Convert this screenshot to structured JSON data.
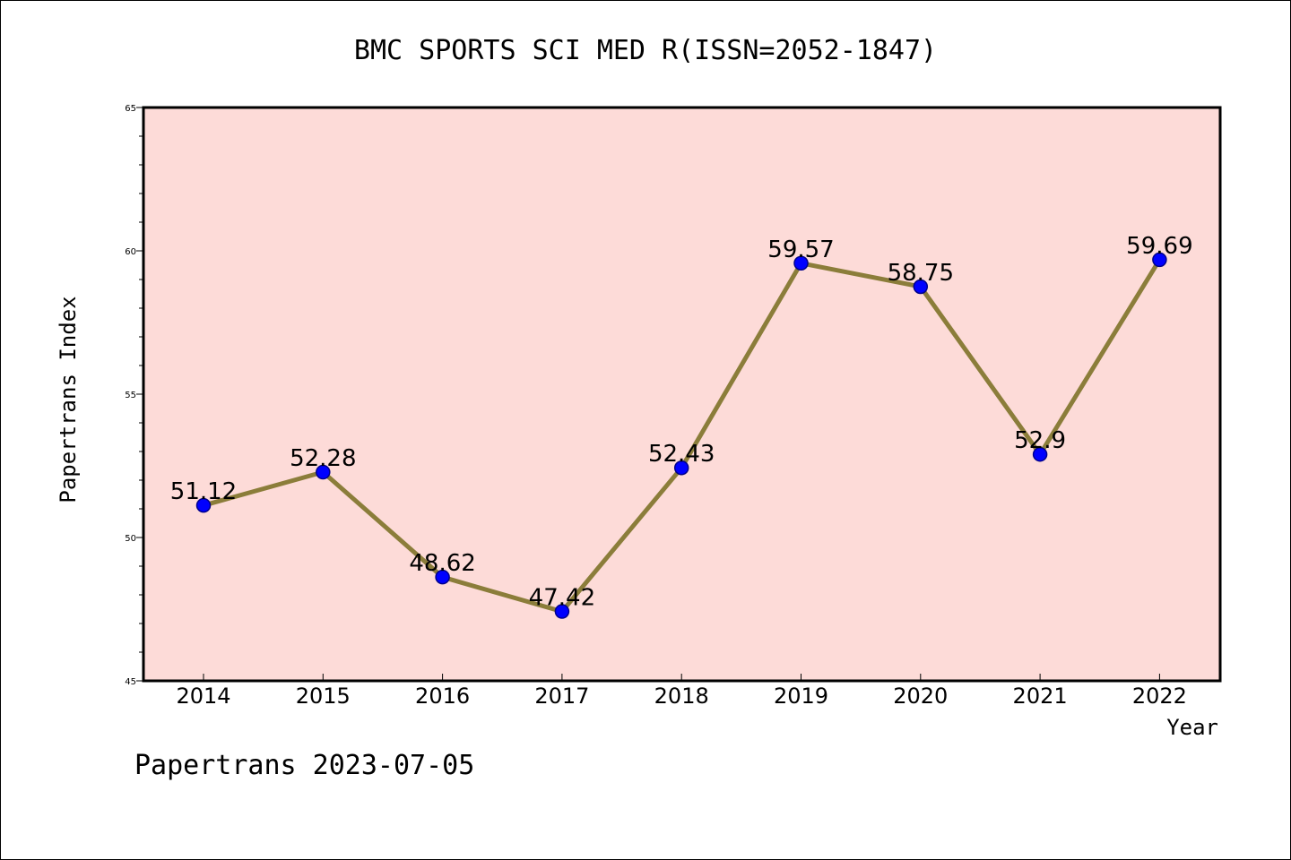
{
  "chart_data": {
    "type": "line",
    "title": "BMC SPORTS SCI MED R(ISSN=2052-1847)",
    "xlabel": "Year",
    "ylabel": "Papertrans Index",
    "categories": [
      "2014",
      "2015",
      "2016",
      "2017",
      "2018",
      "2019",
      "2020",
      "2021",
      "2022"
    ],
    "values": [
      51.12,
      52.28,
      48.62,
      47.42,
      52.43,
      59.57,
      58.75,
      52.9,
      59.69
    ],
    "data_labels": [
      "51.12",
      "52.28",
      "48.62",
      "47.42",
      "52.43",
      "59.57",
      "58.75",
      "52.9",
      "59.69"
    ],
    "ylim": [
      45,
      65
    ],
    "yticks": [
      "45",
      "50",
      "55",
      "60",
      "65"
    ],
    "grid": false,
    "legend": "none",
    "colors": {
      "plot_background": "#fddbd8",
      "line": "#8b7d3a",
      "marker": "#0000ff",
      "marker_edge": "#00008b"
    }
  },
  "footer": "Papertrans 2023-07-05"
}
